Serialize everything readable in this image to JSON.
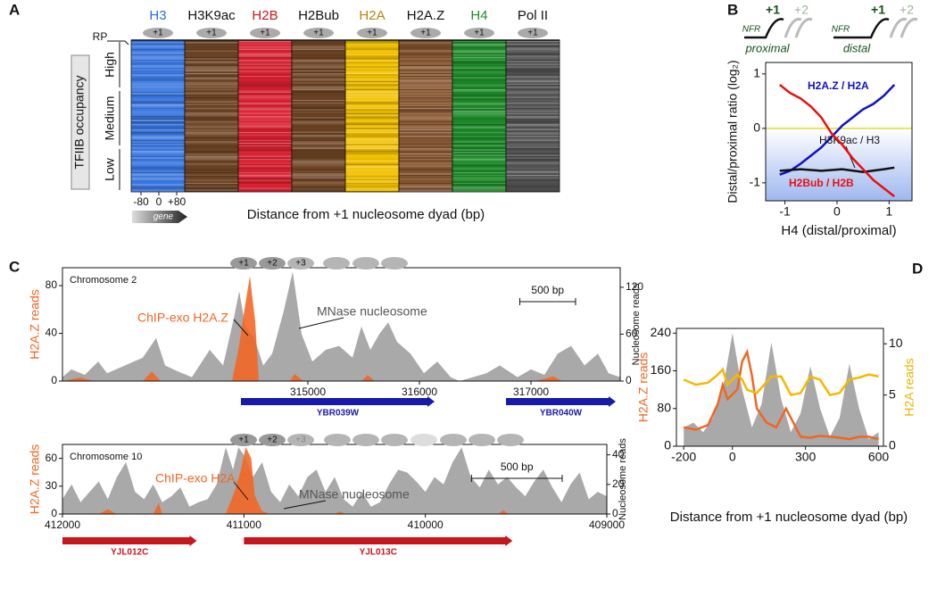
{
  "panel_labels": [
    "A",
    "B",
    "C",
    "D"
  ],
  "heatmap": {
    "columns": [
      {
        "name": "H3",
        "label_color": "#2a6fdb",
        "color": "#3b78e0"
      },
      {
        "name": "H3K9ac",
        "label_color": "#111111",
        "color": "#6e4424"
      },
      {
        "name": "H2B",
        "label_color": "#c8161d",
        "color": "#d92030"
      },
      {
        "name": "H2Bub",
        "label_color": "#111111",
        "color": "#6e4424"
      },
      {
        "name": "H2A",
        "label_color": "#b8860b",
        "color": "#f2c200"
      },
      {
        "name": "H2A.Z",
        "label_color": "#111111",
        "color": "#8a5a35"
      },
      {
        "name": "H4",
        "label_color": "#1e8c2a",
        "color": "#1e8c2a"
      },
      {
        "name": "Pol II",
        "label_color": "#111111",
        "color": "#555555"
      }
    ],
    "marker": "+1",
    "rp_label": "RP",
    "group_title": "TFIIB occupancy",
    "groups": [
      "High",
      "Medium",
      "Low"
    ],
    "x_tick_labels": [
      "-80",
      "0",
      "+80"
    ],
    "gene_label": "gene",
    "xlabel": "Distance from +1 nucleosome dyad (bp)"
  },
  "schematic": [
    {
      "plus1": "+1",
      "plus2": "+2",
      "nfr": "NFR",
      "label": "proximal"
    },
    {
      "plus1": "+1",
      "plus2": "+2",
      "nfr": "NFR",
      "label": "distal"
    }
  ],
  "chart_data": [
    {
      "type": "line",
      "xlabel": "H4 (distal/proximal)",
      "ylabel": "Distal/proximal ratio (log₂)",
      "xlim": [
        -1.37,
        1.44
      ],
      "ylim": [
        -1.33,
        1.21
      ],
      "xticks": [
        -1,
        0,
        1
      ],
      "yticks": [
        -1,
        0,
        1
      ],
      "reference_line": 0,
      "series": [
        {
          "name": "H2A.Z / H2A",
          "color": "#1010c8",
          "x": [
            -1.1,
            -0.9,
            -0.7,
            -0.5,
            -0.3,
            -0.1,
            0.1,
            0.3,
            0.5,
            0.7,
            0.9,
            1.1
          ],
          "values": [
            -0.85,
            -0.78,
            -0.65,
            -0.5,
            -0.35,
            -0.15,
            0.05,
            0.2,
            0.35,
            0.45,
            0.6,
            0.8
          ]
        },
        {
          "name": "H3K9ac / H3",
          "color": "#111111",
          "x": [
            -1.1,
            -0.7,
            -0.3,
            0.1,
            0.5,
            0.9,
            1.1
          ],
          "values": [
            -0.78,
            -0.75,
            -0.78,
            -0.75,
            -0.8,
            -0.75,
            -0.72
          ]
        },
        {
          "name": "H2Bub / H2B",
          "color": "#e81010",
          "x": [
            -1.1,
            -0.9,
            -0.7,
            -0.5,
            -0.3,
            -0.1,
            0.1,
            0.3,
            0.5,
            0.7,
            0.9,
            1.1
          ],
          "values": [
            0.8,
            0.65,
            0.55,
            0.4,
            0.2,
            -0.1,
            -0.3,
            -0.55,
            -0.75,
            -0.95,
            -1.1,
            -1.25
          ]
        }
      ]
    },
    {
      "type": "area",
      "title": "Chromosome 2",
      "xlim": [
        312800,
        317800
      ],
      "xticks": [
        315000,
        316000,
        317000
      ],
      "ylim": [
        0,
        95
      ],
      "yticks": [
        0,
        40,
        80
      ],
      "y2lim": [
        0,
        145
      ],
      "y2ticks": [
        0,
        60,
        120
      ],
      "ylabel": "H2A.Z reads",
      "y2label": "Nucleosome reads",
      "nucleosome_labels": [
        "+1",
        "+2",
        "+3"
      ],
      "scale_bar": {
        "length": 500,
        "label": "500 bp"
      },
      "gene_color": "#1a1aa8",
      "genes": [
        {
          "name": "YBR039W",
          "start": 314400,
          "end": 316136
        },
        {
          "name": "YBR040W",
          "start": 316776,
          "end": 317760
        }
      ],
      "series": [
        {
          "name": "MNase nucleosome",
          "color": "#a9a9a9",
          "axis": "y2",
          "x": [
            312800,
            312880,
            313000,
            313120,
            313200,
            313360,
            313520,
            313640,
            313720,
            313840,
            313960,
            314120,
            314240,
            314336,
            314384,
            314440,
            314520,
            314600,
            314680,
            314784,
            314864,
            314944,
            315040,
            315160,
            315280,
            315400,
            315480,
            315560,
            315640,
            315720,
            315800,
            315920,
            316040,
            316160,
            316280,
            316360,
            316480,
            316600,
            316720,
            316880,
            317000,
            317120,
            317240,
            317360,
            317480,
            317600,
            317696,
            317800
          ],
          "values": [
            5,
            15,
            8,
            25,
            10,
            20,
            30,
            55,
            20,
            12,
            5,
            40,
            20,
            80,
            115,
            70,
            55,
            20,
            35,
            90,
            140,
            60,
            25,
            40,
            45,
            30,
            70,
            40,
            60,
            75,
            50,
            35,
            10,
            25,
            5,
            0,
            5,
            10,
            20,
            5,
            15,
            8,
            35,
            45,
            20,
            35,
            10,
            5
          ]
        },
        {
          "name": "ChIP-exo H2A.Z",
          "color": "#f26522",
          "x": [
            312800,
            312960,
            313080,
            313520,
            313600,
            313680,
            314320,
            314384,
            314432,
            314480,
            314528,
            314560,
            314840,
            314880,
            314960,
            315480,
            315536,
            315600,
            316560,
            317040,
            317200,
            317280,
            317800
          ],
          "values": [
            0,
            3,
            0,
            0,
            8,
            0,
            0,
            30,
            60,
            88,
            50,
            0,
            0,
            6,
            0,
            0,
            5,
            0,
            0,
            0,
            4,
            0,
            0
          ]
        }
      ]
    },
    {
      "type": "area",
      "title": "Chromosome 10",
      "xlim": [
        412000,
        409000
      ],
      "xticks": [
        412000,
        411000,
        410000,
        409000
      ],
      "ylim": [
        0,
        75
      ],
      "yticks": [
        0,
        30,
        60
      ],
      "y2lim": [
        0,
        47
      ],
      "y2ticks": [
        0,
        20,
        40
      ],
      "ylabel": "H2A.Z reads",
      "y2label": "Nucleosome reads",
      "nucleosome_labels": [
        "+1",
        "+2",
        "+3"
      ],
      "scale_bar": {
        "length": 500,
        "label": "500 bp"
      },
      "gene_color": "#c8161d",
      "genes": [
        {
          "name": "YJL012C",
          "start": 412000,
          "end": 411260
        },
        {
          "name": "YJL013C",
          "start": 411000,
          "end": 409520
        }
      ],
      "series": [
        {
          "name": "MNase nucleosome",
          "color": "#a9a9a9",
          "axis": "y2",
          "x": [
            412000,
            411950,
            411900,
            411850,
            411800,
            411750,
            411700,
            411650,
            411600,
            411550,
            411500,
            411450,
            411400,
            411350,
            411300,
            411250,
            411200,
            411150,
            411100,
            411060,
            411030,
            411000,
            410950,
            410900,
            410850,
            410800,
            410750,
            410700,
            410650,
            410600,
            410550,
            410500,
            410450,
            410400,
            410350,
            410300,
            410250,
            410200,
            410150,
            410100,
            410050,
            410000,
            409950,
            409900,
            409850,
            409800,
            409750,
            409700,
            409650,
            409600,
            409550,
            409500,
            409450,
            409400,
            409350,
            409300,
            409250,
            409200,
            409150,
            409100,
            409050,
            409000
          ],
          "values": [
            10,
            20,
            8,
            15,
            22,
            10,
            25,
            35,
            15,
            10,
            20,
            8,
            12,
            18,
            5,
            8,
            10,
            20,
            45,
            30,
            45,
            40,
            25,
            35,
            15,
            8,
            20,
            12,
            25,
            30,
            15,
            25,
            10,
            5,
            15,
            5,
            8,
            20,
            30,
            28,
            22,
            15,
            25,
            20,
            35,
            45,
            25,
            18,
            30,
            20,
            25,
            18,
            12,
            22,
            30,
            18,
            8,
            20,
            28,
            10,
            15,
            12
          ]
        },
        {
          "name": "ChIP-exo H2A.Z",
          "color": "#f26522",
          "x": [
            412000,
            411800,
            411750,
            411700,
            411500,
            411470,
            411450,
            411100,
            411050,
            411020,
            410990,
            410960,
            410940,
            410900,
            410850,
            410500,
            410470,
            410440,
            409600,
            409570,
            409540,
            409000
          ],
          "values": [
            0,
            0,
            5,
            0,
            0,
            12,
            0,
            0,
            25,
            45,
            72,
            60,
            20,
            3,
            0,
            0,
            3,
            0,
            0,
            4,
            0,
            0
          ]
        }
      ]
    },
    {
      "type": "line",
      "xlabel": "Distance from +1 nucleosome dyad (bp)",
      "ylabel": "H2A.Z reads",
      "y2label": "H2A reads",
      "xlim": [
        -230,
        620
      ],
      "xticks": [
        -200,
        0,
        300,
        600
      ],
      "ylim": [
        0,
        250
      ],
      "yticks": [
        0,
        80,
        160,
        240
      ],
      "y2lim": [
        0,
        11.5
      ],
      "y2ticks": [
        0,
        5,
        10
      ],
      "series": [
        {
          "color": "#a9a9a9",
          "style": "area",
          "x": [
            -200,
            -160,
            -120,
            -80,
            -40,
            0,
            40,
            80,
            120,
            160,
            200,
            240,
            280,
            320,
            360,
            400,
            440,
            480,
            520,
            560,
            600
          ],
          "values": [
            40,
            50,
            30,
            60,
            120,
            240,
            120,
            40,
            90,
            220,
            100,
            30,
            70,
            170,
            80,
            20,
            60,
            175,
            80,
            15,
            30
          ]
        },
        {
          "color": "#f26522",
          "x": [
            -200,
            -150,
            -100,
            -60,
            -40,
            -20,
            20,
            40,
            60,
            80,
            100,
            140,
            180,
            220,
            240,
            280,
            320,
            360,
            400,
            440,
            480,
            520,
            560,
            600
          ],
          "values": [
            40,
            35,
            45,
            90,
            130,
            100,
            120,
            180,
            200,
            150,
            80,
            50,
            40,
            80,
            60,
            20,
            18,
            22,
            20,
            18,
            15,
            20,
            20,
            15
          ]
        },
        {
          "color": "#f5b800",
          "axis": "y2",
          "x": [
            -200,
            -150,
            -100,
            -60,
            -40,
            -20,
            0,
            20,
            40,
            60,
            100,
            160,
            200,
            240,
            280,
            320,
            360,
            400,
            440,
            480,
            520,
            560,
            600
          ],
          "values": [
            6.5,
            6,
            6.2,
            7,
            7.5,
            6,
            6.5,
            7,
            6.5,
            5.5,
            5.2,
            6.8,
            6.8,
            5,
            5.2,
            6.8,
            6.5,
            5,
            5.2,
            6.5,
            6.7,
            7,
            6.8
          ]
        }
      ]
    }
  ]
}
